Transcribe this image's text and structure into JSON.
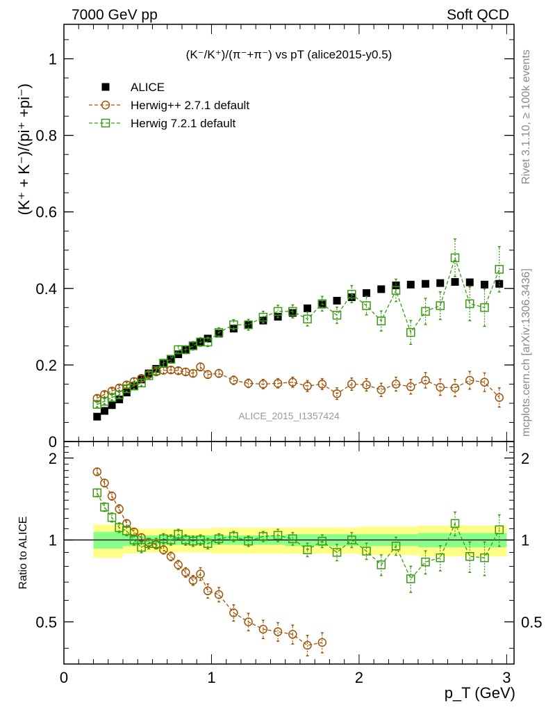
{
  "header": {
    "left": "7000 GeV pp",
    "right": "Soft QCD"
  },
  "plot_title_main": "(K⁻/K⁺)/(π⁻+π⁻) vs pT (alice2015-y0.5)",
  "watermark": "ALICE_2015_I1357424",
  "side_labels": {
    "rivet": "Rivet 3.1.10, ≥ 100k events",
    "mcplots": "mcplots.cern.ch [arXiv:1306.3436]"
  },
  "colors": {
    "data": "#000000",
    "herwigpp": "#a0540a",
    "herwig7": "#3a9a14",
    "band_inner": "#88ff88",
    "band_outer": "#ffff88"
  },
  "chart_data": [
    {
      "type": "scatter",
      "panel": "main",
      "title": "(K⁻/K⁺)/(π⁻+π⁻) vs pT (alice2015-y0.5)",
      "ylabel": "(K⁺ + K⁻)/(pi⁺ +pi⁻)",
      "xlabel": "",
      "xlim": [
        0,
        3.05
      ],
      "ylim": [
        0,
        1.09
      ],
      "y_ticks": [
        0,
        0.2,
        0.4,
        0.6,
        0.8,
        1
      ],
      "y_tick_labels": [
        "0",
        "0.2",
        "0.4",
        "0.6",
        "0.8",
        "1"
      ],
      "legend_position": "top-left",
      "series": [
        {
          "name": "ALICE",
          "marker": "filled-square",
          "x": [
            0.225,
            0.275,
            0.325,
            0.375,
            0.425,
            0.475,
            0.525,
            0.575,
            0.625,
            0.675,
            0.725,
            0.775,
            0.825,
            0.875,
            0.925,
            0.975,
            1.05,
            1.15,
            1.25,
            1.35,
            1.45,
            1.55,
            1.65,
            1.75,
            1.85,
            1.95,
            2.05,
            2.15,
            2.25,
            2.35,
            2.45,
            2.55,
            2.65,
            2.75,
            2.85,
            2.95
          ],
          "y": [
            0.065,
            0.08,
            0.095,
            0.11,
            0.128,
            0.145,
            0.162,
            0.178,
            0.19,
            0.203,
            0.215,
            0.228,
            0.24,
            0.251,
            0.26,
            0.269,
            0.282,
            0.295,
            0.306,
            0.316,
            0.326,
            0.336,
            0.348,
            0.358,
            0.368,
            0.377,
            0.388,
            0.398,
            0.408,
            0.41,
            0.412,
            0.414,
            0.417,
            0.416,
            0.41,
            0.412
          ],
          "yerr": [
            0.002,
            0.002,
            0.002,
            0.002,
            0.002,
            0.002,
            0.002,
            0.002,
            0.002,
            0.002,
            0.002,
            0.002,
            0.002,
            0.002,
            0.002,
            0.002,
            0.003,
            0.003,
            0.003,
            0.003,
            0.003,
            0.003,
            0.004,
            0.004,
            0.004,
            0.004,
            0.004,
            0.005,
            0.005,
            0.005,
            0.005,
            0.006,
            0.006,
            0.006,
            0.007,
            0.007
          ]
        },
        {
          "name": "Herwig++ 2.7.1 default",
          "marker": "open-circle",
          "x": [
            0.225,
            0.275,
            0.325,
            0.375,
            0.425,
            0.475,
            0.525,
            0.575,
            0.625,
            0.675,
            0.725,
            0.775,
            0.825,
            0.875,
            0.925,
            0.975,
            1.05,
            1.15,
            1.25,
            1.35,
            1.45,
            1.55,
            1.65,
            1.75,
            1.85,
            1.95,
            2.05,
            2.15,
            2.25,
            2.35,
            2.45,
            2.55,
            2.65,
            2.75,
            2.85,
            2.95
          ],
          "y": [
            0.113,
            0.123,
            0.132,
            0.14,
            0.148,
            0.157,
            0.165,
            0.175,
            0.182,
            0.186,
            0.187,
            0.185,
            0.182,
            0.178,
            0.195,
            0.175,
            0.178,
            0.16,
            0.152,
            0.15,
            0.152,
            0.155,
            0.145,
            0.15,
            0.125,
            0.15,
            0.148,
            0.135,
            0.15,
            0.143,
            0.16,
            0.142,
            0.14,
            0.16,
            0.155,
            0.115
          ],
          "yerr": [
            0.003,
            0.003,
            0.003,
            0.003,
            0.003,
            0.004,
            0.004,
            0.004,
            0.004,
            0.004,
            0.004,
            0.004,
            0.005,
            0.005,
            0.006,
            0.006,
            0.006,
            0.007,
            0.007,
            0.008,
            0.008,
            0.009,
            0.01,
            0.01,
            0.011,
            0.012,
            0.012,
            0.013,
            0.014,
            0.015,
            0.016,
            0.017,
            0.018,
            0.019,
            0.02,
            0.021
          ]
        },
        {
          "name": "Herwig 7.2.1 default",
          "marker": "open-square",
          "x": [
            0.225,
            0.275,
            0.325,
            0.375,
            0.425,
            0.475,
            0.525,
            0.575,
            0.625,
            0.675,
            0.725,
            0.775,
            0.825,
            0.875,
            0.925,
            0.975,
            1.05,
            1.15,
            1.25,
            1.35,
            1.45,
            1.55,
            1.65,
            1.75,
            1.85,
            1.95,
            2.05,
            2.15,
            2.25,
            2.35,
            2.45,
            2.55,
            2.65,
            2.75,
            2.85,
            2.95
          ],
          "y": [
            0.097,
            0.105,
            0.115,
            0.122,
            0.138,
            0.145,
            0.153,
            0.172,
            0.185,
            0.205,
            0.215,
            0.24,
            0.24,
            0.25,
            0.26,
            0.26,
            0.285,
            0.305,
            0.305,
            0.325,
            0.34,
            0.34,
            0.32,
            0.36,
            0.33,
            0.385,
            0.355,
            0.315,
            0.395,
            0.285,
            0.34,
            0.355,
            0.48,
            0.36,
            0.35,
            0.45
          ],
          "yerr": [
            0.003,
            0.003,
            0.003,
            0.003,
            0.004,
            0.004,
            0.004,
            0.005,
            0.005,
            0.005,
            0.006,
            0.006,
            0.006,
            0.007,
            0.007,
            0.008,
            0.008,
            0.009,
            0.01,
            0.011,
            0.012,
            0.013,
            0.014,
            0.015,
            0.017,
            0.018,
            0.02,
            0.022,
            0.025,
            0.027,
            0.03,
            0.032,
            0.045,
            0.04,
            0.045,
            0.055
          ]
        }
      ]
    },
    {
      "type": "scatter",
      "panel": "ratio",
      "ylabel": "Ratio to ALICE",
      "xlabel": "p_T (GeV)",
      "xlim": [
        0,
        3.05
      ],
      "ylim": [
        0.35,
        2.3
      ],
      "x_ticks": [
        0,
        1,
        2,
        3
      ],
      "x_tick_labels": [
        "0",
        "1",
        "2",
        "3"
      ],
      "y_ticks": [
        0.5,
        1,
        2
      ],
      "y_tick_labels": [
        "0.5",
        "1",
        "2"
      ],
      "y_scale": "log",
      "bands": {
        "x_edges": [
          0.2,
          0.4,
          0.5,
          0.6,
          1.0,
          1.5,
          2.0,
          2.4,
          3.0
        ],
        "inner_low": [
          0.93,
          0.95,
          0.96,
          0.96,
          0.96,
          0.95,
          0.95,
          0.94
        ],
        "inner_high": [
          1.07,
          1.05,
          1.04,
          1.04,
          1.04,
          1.05,
          1.05,
          1.06
        ],
        "outer_low": [
          0.86,
          0.89,
          0.9,
          0.9,
          0.89,
          0.89,
          0.88,
          0.87
        ],
        "outer_high": [
          1.14,
          1.11,
          1.1,
          1.1,
          1.11,
          1.11,
          1.12,
          1.13
        ]
      },
      "series": [
        {
          "name": "Herwig++ 2.7.1 default",
          "marker": "open-circle",
          "x": [
            0.225,
            0.275,
            0.325,
            0.375,
            0.425,
            0.475,
            0.525,
            0.575,
            0.625,
            0.675,
            0.725,
            0.775,
            0.825,
            0.875,
            0.925,
            0.975,
            1.05,
            1.15,
            1.25,
            1.35,
            1.45,
            1.55,
            1.65,
            1.75
          ],
          "y": [
            1.78,
            1.62,
            1.45,
            1.3,
            1.15,
            1.07,
            1.02,
            0.98,
            0.96,
            0.92,
            0.87,
            0.81,
            0.76,
            0.71,
            0.75,
            0.65,
            0.63,
            0.54,
            0.5,
            0.47,
            0.46,
            0.45,
            0.41,
            0.42
          ],
          "yerr": [
            0.03,
            0.03,
            0.03,
            0.03,
            0.02,
            0.02,
            0.02,
            0.02,
            0.02,
            0.02,
            0.02,
            0.02,
            0.02,
            0.02,
            0.03,
            0.03,
            0.03,
            0.03,
            0.03,
            0.03,
            0.03,
            0.03,
            0.03,
            0.03
          ]
        },
        {
          "name": "Herwig 7.2.1 default",
          "marker": "open-square",
          "x": [
            0.225,
            0.275,
            0.325,
            0.375,
            0.425,
            0.475,
            0.525,
            0.575,
            0.625,
            0.675,
            0.725,
            0.775,
            0.825,
            0.875,
            0.925,
            0.975,
            1.05,
            1.15,
            1.25,
            1.35,
            1.45,
            1.55,
            1.65,
            1.75,
            1.85,
            1.95,
            2.05,
            2.15,
            2.25,
            2.35,
            2.45,
            2.55,
            2.65,
            2.75,
            2.85,
            2.95
          ],
          "y": [
            1.49,
            1.32,
            1.21,
            1.11,
            1.08,
            1.0,
            0.94,
            0.97,
            0.97,
            1.01,
            1.0,
            1.05,
            1.0,
            0.99,
            1.0,
            0.97,
            1.01,
            1.03,
            0.99,
            1.03,
            1.04,
            1.01,
            0.92,
            0.99,
            0.9,
            1.0,
            0.91,
            0.81,
            0.95,
            0.72,
            0.83,
            0.86,
            1.15,
            0.87,
            0.86,
            1.09
          ],
          "yerr": [
            0.03,
            0.03,
            0.03,
            0.03,
            0.03,
            0.03,
            0.03,
            0.03,
            0.03,
            0.03,
            0.03,
            0.03,
            0.03,
            0.03,
            0.03,
            0.03,
            0.03,
            0.03,
            0.03,
            0.03,
            0.04,
            0.04,
            0.04,
            0.04,
            0.05,
            0.05,
            0.05,
            0.06,
            0.06,
            0.07,
            0.07,
            0.08,
            0.1,
            0.1,
            0.11,
            0.13
          ]
        }
      ]
    }
  ]
}
